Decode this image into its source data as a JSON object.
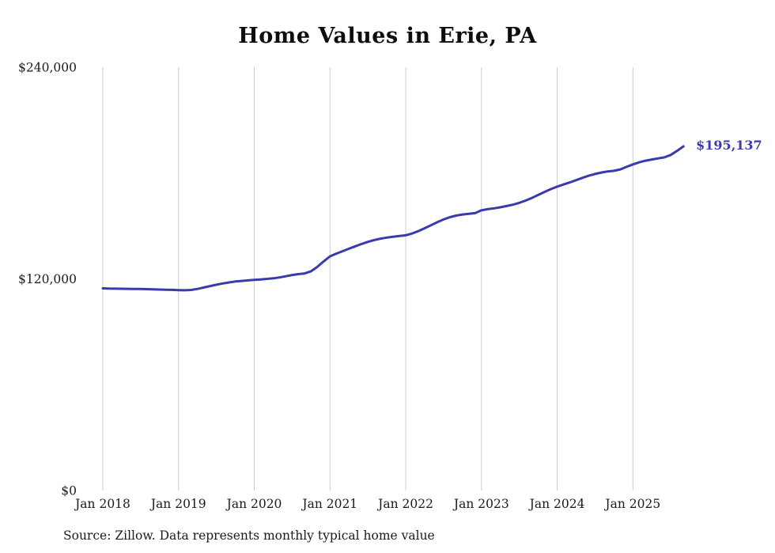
{
  "colors": {
    "line": "#3a3aae",
    "latest_label": "#3a3aae",
    "grid": "#cccccc",
    "text": "#1a1a1a"
  },
  "source_note": "Source: Zillow. Data represents monthly typical home value",
  "chart_data": {
    "type": "line",
    "title": "Home Values in Erie, PA",
    "xlabel": "",
    "ylabel": "",
    "ylim": [
      0,
      240000
    ],
    "grid": "vertical-only",
    "legend": false,
    "x_ticks": [
      "Jan 2018",
      "Jan 2019",
      "Jan 2020",
      "Jan 2021",
      "Jan 2022",
      "Jan 2023",
      "Jan 2024",
      "Jan 2025"
    ],
    "y_ticks": [
      {
        "value": 0,
        "label": "$0"
      },
      {
        "value": 120000,
        "label": "$120,000"
      },
      {
        "value": 240000,
        "label": "$240,000"
      }
    ],
    "frequency": "monthly",
    "x_start": "Jan 2018",
    "x_end": "Sep 2025",
    "last_value_label": "$195,137",
    "series": [
      {
        "name": "Typical home value",
        "values": [
          114600,
          114500,
          114450,
          114400,
          114350,
          114300,
          114250,
          114150,
          114050,
          113950,
          113850,
          113750,
          113650,
          113550,
          113700,
          114300,
          115100,
          115900,
          116700,
          117400,
          118000,
          118500,
          118850,
          119150,
          119400,
          119700,
          120000,
          120300,
          120800,
          121500,
          122200,
          122700,
          123100,
          124300,
          126800,
          129900,
          132800,
          134300,
          135700,
          137100,
          138500,
          139800,
          141000,
          142000,
          142800,
          143400,
          143900,
          144300,
          144700,
          145700,
          147100,
          148700,
          150400,
          152100,
          153700,
          155000,
          155900,
          156500,
          156900,
          157300,
          158900,
          159500,
          160000,
          160600,
          161300,
          162100,
          163100,
          164400,
          165900,
          167600,
          169300,
          170900,
          172300,
          173500,
          174700,
          176000,
          177300,
          178500,
          179500,
          180300,
          180900,
          181300,
          182100,
          183500,
          184900,
          186100,
          187000,
          187700,
          188300,
          188900,
          190300,
          192600,
          195137
        ]
      }
    ]
  }
}
